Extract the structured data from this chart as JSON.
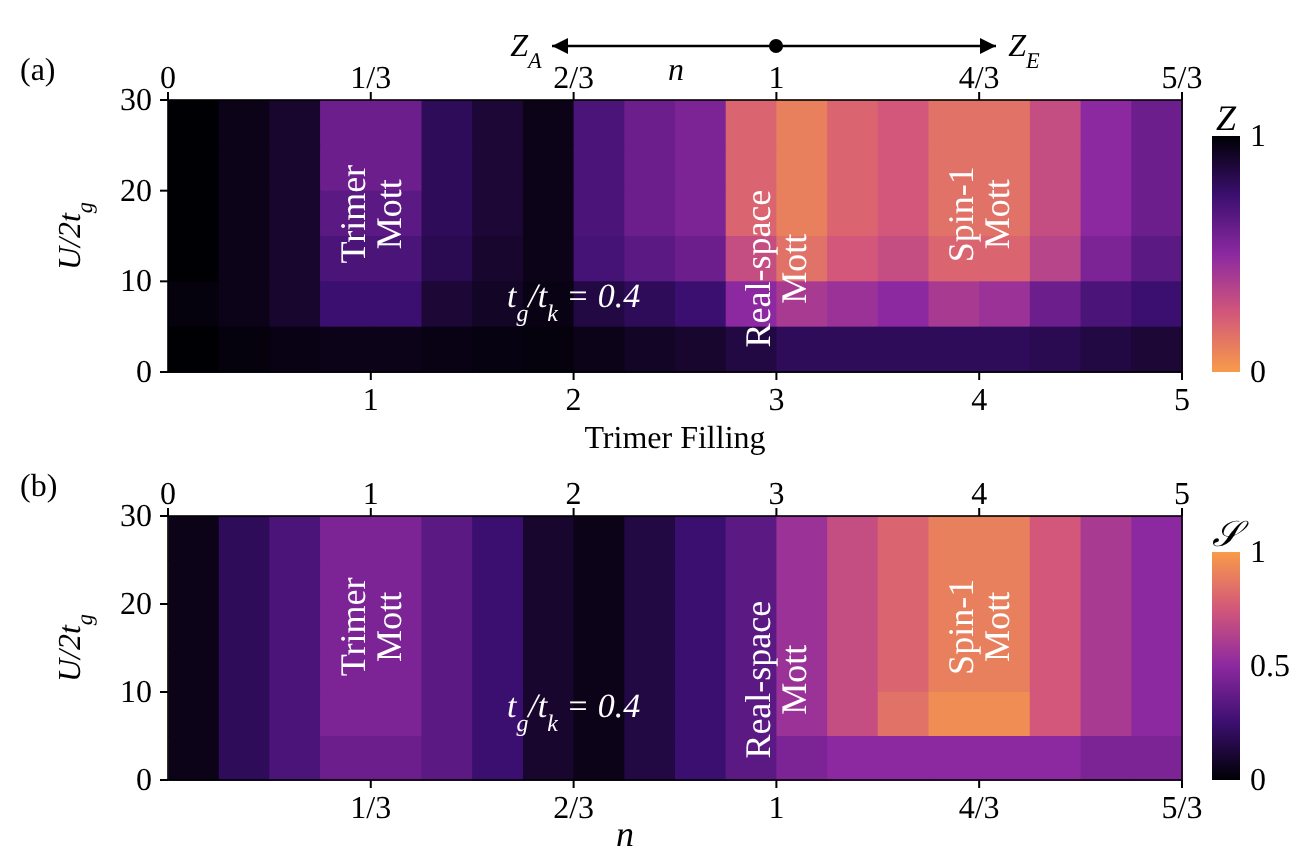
{
  "chart_data": [
    {
      "type": "heatmap",
      "title": "(a)",
      "ylabel": "U/2t$_{g}$",
      "xlabel": "Trimer Filling",
      "clabel": "Z",
      "x": [
        0.125,
        0.375,
        0.625,
        0.875,
        1.125,
        1.375,
        1.625,
        1.875,
        2.125,
        2.375,
        2.625,
        2.875,
        3.125,
        3.375,
        3.625,
        3.875,
        4.125,
        4.375,
        4.625,
        4.875
      ],
      "y": [
        27.5,
        22.5,
        17.5,
        12.5,
        7.5,
        2.5
      ],
      "cells": [
        [
          1,
          0.95,
          0.9,
          0.6,
          0.6,
          0.8,
          0.88,
          0.95,
          0.7,
          0.6,
          0.55,
          0.2,
          0.1,
          0.2,
          0.25,
          0.15,
          0.15,
          0.3,
          0.5,
          0.6
        ],
        [
          1,
          0.95,
          0.9,
          0.6,
          0.6,
          0.8,
          0.88,
          0.95,
          0.7,
          0.6,
          0.55,
          0.2,
          0.1,
          0.2,
          0.25,
          0.15,
          0.15,
          0.3,
          0.5,
          0.6
        ],
        [
          1,
          0.95,
          0.9,
          0.65,
          0.65,
          0.8,
          0.88,
          0.95,
          0.7,
          0.6,
          0.55,
          0.2,
          0.1,
          0.2,
          0.25,
          0.15,
          0.15,
          0.3,
          0.5,
          0.6
        ],
        [
          1,
          0.95,
          0.9,
          0.7,
          0.7,
          0.82,
          0.9,
          0.95,
          0.72,
          0.65,
          0.6,
          0.3,
          0.15,
          0.25,
          0.3,
          0.2,
          0.2,
          0.35,
          0.55,
          0.65
        ],
        [
          0.98,
          0.95,
          0.9,
          0.75,
          0.75,
          0.88,
          0.92,
          0.96,
          0.85,
          0.8,
          0.75,
          0.5,
          0.4,
          0.45,
          0.5,
          0.4,
          0.45,
          0.6,
          0.7,
          0.75
        ],
        [
          1,
          0.98,
          0.96,
          0.95,
          0.95,
          0.96,
          0.97,
          0.98,
          0.95,
          0.92,
          0.9,
          0.85,
          0.8,
          0.8,
          0.8,
          0.8,
          0.8,
          0.82,
          0.85,
          0.88
        ]
      ],
      "colors": [
        "#f89b4a",
        "#d2577a",
        "#8c29a0",
        "#3b0f6f",
        "#000004"
      ],
      "clim": [
        0,
        1
      ],
      "cticks": [
        0,
        1
      ],
      "xlim": [
        0,
        5
      ],
      "xticks": [
        1,
        2,
        3,
        4,
        5
      ],
      "x2lim": [
        0,
        1.6667
      ],
      "x2ticks": [
        0,
        {
          "value": 0.3333,
          "label": "1/3"
        },
        {
          "value": 0.6667,
          "label": "2/3"
        },
        1,
        {
          "value": 1.3333,
          "label": "4/3"
        },
        {
          "value": 1.6667,
          "label": "5/3"
        }
      ],
      "ylim": [
        0,
        30
      ],
      "yticks": [
        0,
        10,
        20,
        30
      ],
      "annotations": [
        "Z$_{A}$",
        "n",
        "Z$_{E}$",
        "Trimer\nMott",
        "Real-space\nMott",
        "Spin-1\nMott",
        "t$_{g}$/t$_{k}$ = 0.4"
      ]
    },
    {
      "type": "heatmap",
      "title": "(b)",
      "ylabel": "U/2t$_{g}$",
      "xlabel": "n",
      "clabel": "𝒮",
      "x": [
        0.042,
        0.125,
        0.208,
        0.292,
        0.375,
        0.458,
        0.542,
        0.625,
        0.708,
        0.792,
        0.875,
        0.958,
        1.042,
        1.125,
        1.208,
        1.292,
        1.375,
        1.458,
        1.542,
        1.625
      ],
      "y": [
        27.5,
        22.5,
        17.5,
        12.5,
        7.5,
        2.5
      ],
      "cells": [
        [
          0.05,
          0.2,
          0.3,
          0.45,
          0.45,
          0.35,
          0.25,
          0.1,
          0.05,
          0.15,
          0.25,
          0.35,
          0.55,
          0.7,
          0.8,
          0.9,
          0.9,
          0.75,
          0.6,
          0.5
        ],
        [
          0.05,
          0.2,
          0.3,
          0.45,
          0.45,
          0.35,
          0.25,
          0.1,
          0.05,
          0.15,
          0.25,
          0.35,
          0.55,
          0.7,
          0.8,
          0.9,
          0.9,
          0.75,
          0.6,
          0.5
        ],
        [
          0.05,
          0.2,
          0.3,
          0.45,
          0.45,
          0.35,
          0.25,
          0.1,
          0.05,
          0.15,
          0.25,
          0.35,
          0.55,
          0.7,
          0.8,
          0.9,
          0.9,
          0.75,
          0.6,
          0.5
        ],
        [
          0.05,
          0.2,
          0.3,
          0.45,
          0.45,
          0.35,
          0.25,
          0.1,
          0.05,
          0.15,
          0.25,
          0.35,
          0.55,
          0.7,
          0.8,
          0.9,
          0.9,
          0.75,
          0.6,
          0.5
        ],
        [
          0.05,
          0.2,
          0.3,
          0.45,
          0.45,
          0.35,
          0.25,
          0.1,
          0.05,
          0.15,
          0.25,
          0.35,
          0.55,
          0.7,
          0.85,
          0.95,
          0.95,
          0.75,
          0.6,
          0.5
        ],
        [
          0.05,
          0.2,
          0.3,
          0.4,
          0.4,
          0.35,
          0.25,
          0.1,
          0.05,
          0.15,
          0.25,
          0.35,
          0.45,
          0.5,
          0.5,
          0.5,
          0.5,
          0.5,
          0.45,
          0.45
        ]
      ],
      "colors": [
        "#000004",
        "#3b0f6f",
        "#8c29a0",
        "#d2577a",
        "#f89b4a"
      ],
      "clim": [
        0,
        1
      ],
      "cticks": [
        0,
        0.5,
        1
      ],
      "xlim": [
        0,
        1.6667
      ],
      "xticks": [
        {
          "value": 0.3333,
          "label": "1/3"
        },
        {
          "value": 0.6667,
          "label": "2/3"
        },
        1,
        {
          "value": 1.3333,
          "label": "4/3"
        },
        {
          "value": 1.6667,
          "label": "5/3"
        }
      ],
      "x2lim": [
        0,
        5
      ],
      "x2ticks": [
        0,
        1,
        2,
        3,
        4,
        5
      ],
      "ylim": [
        0,
        30
      ],
      "yticks": [
        0,
        10,
        20,
        30
      ],
      "annotations": [
        "Trimer\nMott",
        "Real-space\nMott",
        "Spin-1\nMott",
        "t$_{g}$/t$_{k}$ = 0.4"
      ]
    }
  ]
}
